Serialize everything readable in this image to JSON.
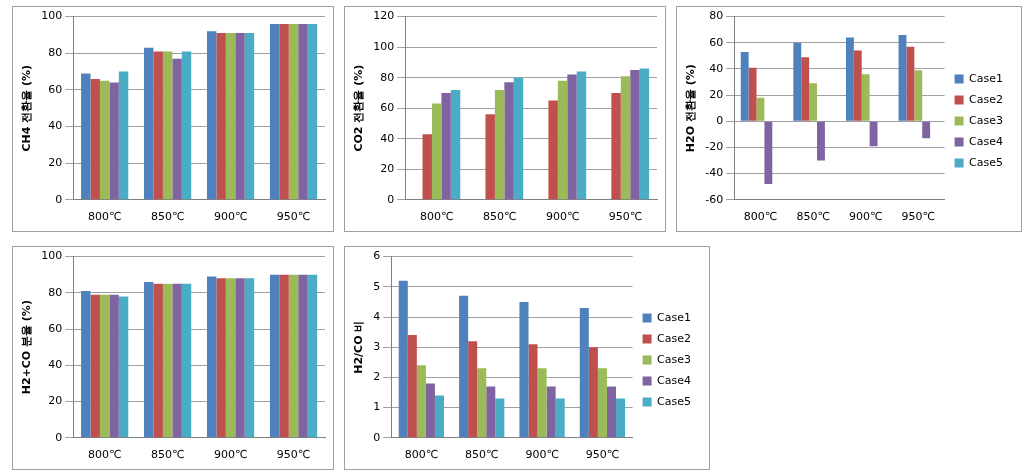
{
  "chart_data": [
    {
      "type": "bar",
      "y_label": "CH4 전환율 (%)",
      "categories": [
        "800℃",
        "850℃",
        "900℃",
        "950℃"
      ],
      "series": [
        {
          "name": "Case1",
          "color": "#4f81bd",
          "values": [
            69,
            83,
            92,
            96
          ]
        },
        {
          "name": "Case2",
          "color": "#c0504d",
          "values": [
            66,
            81,
            91,
            96
          ]
        },
        {
          "name": "Case3",
          "color": "#9bbb59",
          "values": [
            65,
            81,
            91,
            96
          ]
        },
        {
          "name": "Case4",
          "color": "#8064a2",
          "values": [
            64,
            77,
            91,
            96
          ]
        },
        {
          "name": "Case5",
          "color": "#4bacc6",
          "values": [
            70,
            81,
            91,
            96
          ]
        }
      ],
      "ylim": [
        0,
        100
      ],
      "yticks": [
        0,
        20,
        40,
        60,
        80,
        100
      ],
      "grid": true
    },
    {
      "type": "bar",
      "y_label": "CO2 전환율 (%)",
      "categories": [
        "800℃",
        "850℃",
        "900℃",
        "950℃"
      ],
      "series": [
        {
          "name": "Case1",
          "color": "#4f81bd",
          "values": [
            null,
            null,
            null,
            null
          ]
        },
        {
          "name": "Case2",
          "color": "#c0504d",
          "values": [
            43,
            56,
            65,
            70
          ]
        },
        {
          "name": "Case3",
          "color": "#9bbb59",
          "values": [
            63,
            72,
            78,
            81
          ]
        },
        {
          "name": "Case4",
          "color": "#8064a2",
          "values": [
            70,
            77,
            82,
            85
          ]
        },
        {
          "name": "Case5",
          "color": "#4bacc6",
          "values": [
            72,
            80,
            84,
            86
          ]
        }
      ],
      "ylim": [
        0,
        120
      ],
      "yticks": [
        0,
        20,
        40,
        60,
        80,
        100,
        120
      ],
      "grid": true
    },
    {
      "type": "bar",
      "y_label": "H2O 전환율 (%)",
      "categories": [
        "800℃",
        "850℃",
        "900℃",
        "950℃"
      ],
      "series": [
        {
          "name": "Case1",
          "color": "#4f81bd",
          "values": [
            53,
            60,
            64,
            66
          ]
        },
        {
          "name": "Case2",
          "color": "#c0504d",
          "values": [
            41,
            49,
            54,
            57
          ]
        },
        {
          "name": "Case3",
          "color": "#9bbb59",
          "values": [
            18,
            29,
            36,
            39
          ]
        },
        {
          "name": "Case4",
          "color": "#8064a2",
          "values": [
            -48,
            -30,
            -19,
            -13
          ]
        },
        {
          "name": "Case5",
          "color": "#4bacc6",
          "values": [
            null,
            null,
            null,
            null
          ]
        }
      ],
      "ylim": [
        -60,
        80
      ],
      "yticks": [
        -60,
        -40,
        -20,
        0,
        20,
        40,
        60,
        80
      ],
      "grid": true,
      "legend": "right"
    },
    {
      "type": "bar",
      "y_label": "H2+CO 분율 (%)",
      "categories": [
        "800℃",
        "850℃",
        "900℃",
        "950℃"
      ],
      "series": [
        {
          "name": "Case1",
          "color": "#4f81bd",
          "values": [
            81,
            86,
            89,
            90
          ]
        },
        {
          "name": "Case2",
          "color": "#c0504d",
          "values": [
            79,
            85,
            88,
            90
          ]
        },
        {
          "name": "Case3",
          "color": "#9bbb59",
          "values": [
            79,
            85,
            88,
            90
          ]
        },
        {
          "name": "Case4",
          "color": "#8064a2",
          "values": [
            79,
            85,
            88,
            90
          ]
        },
        {
          "name": "Case5",
          "color": "#4bacc6",
          "values": [
            78,
            85,
            88,
            90
          ]
        }
      ],
      "ylim": [
        0,
        100
      ],
      "yticks": [
        0,
        20,
        40,
        60,
        80,
        100
      ],
      "grid": true
    },
    {
      "type": "bar",
      "y_label": "H2/CO 비",
      "categories": [
        "800℃",
        "850℃",
        "900℃",
        "950℃"
      ],
      "series": [
        {
          "name": "Case1",
          "color": "#4f81bd",
          "values": [
            5.2,
            4.7,
            4.5,
            4.3
          ]
        },
        {
          "name": "Case2",
          "color": "#c0504d",
          "values": [
            3.4,
            3.2,
            3.1,
            3.0
          ]
        },
        {
          "name": "Case3",
          "color": "#9bbb59",
          "values": [
            2.4,
            2.3,
            2.3,
            2.3
          ]
        },
        {
          "name": "Case4",
          "color": "#8064a2",
          "values": [
            1.8,
            1.7,
            1.7,
            1.7
          ]
        },
        {
          "name": "Case5",
          "color": "#4bacc6",
          "values": [
            1.4,
            1.3,
            1.3,
            1.3
          ]
        }
      ],
      "ylim": [
        0,
        6
      ],
      "yticks": [
        0,
        1,
        2,
        3,
        4,
        5,
        6
      ],
      "grid": true,
      "legend": "right"
    }
  ]
}
